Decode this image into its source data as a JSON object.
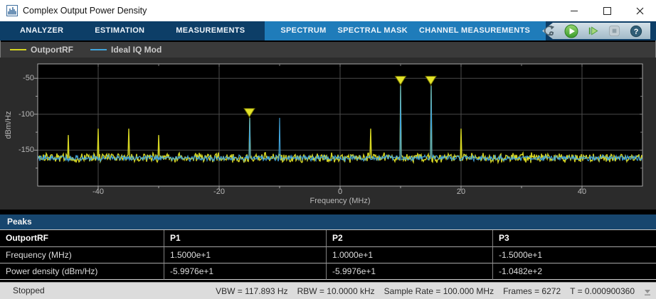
{
  "window": {
    "title": "Complex Output Power Density"
  },
  "ribbon": {
    "tabs": [
      "ANALYZER",
      "ESTIMATION",
      "MEASUREMENTS"
    ],
    "contextual_tabs": [
      "SPECTRUM",
      "SPECTRAL MASK",
      "CHANNEL MEASUREMENTS"
    ],
    "control_icons": [
      "run-with-settings-icon",
      "run-icon",
      "step-forward-icon",
      "stop-icon",
      "help-icon"
    ]
  },
  "legend": {
    "items": [
      {
        "label": "OutportRF",
        "color": "#d6d622"
      },
      {
        "label": "Ideal IQ Mod",
        "color": "#42a5dc"
      }
    ]
  },
  "chart_data": {
    "type": "line",
    "title": "Complex Output Power Density",
    "xlabel": "Frequency (MHz)",
    "ylabel": "dBm/Hz",
    "xlim": [
      -50,
      50
    ],
    "ylim": [
      -200,
      -30
    ],
    "xticks": [
      -40,
      -20,
      0,
      20,
      40
    ],
    "yticks": [
      -50,
      -100,
      -150
    ],
    "grid": true,
    "background": "#000000",
    "noise_floor_dBm_per_Hz": -160,
    "series": [
      {
        "name": "OutportRF",
        "color": "#d6d622",
        "noise_mean": -160.5,
        "noise_amp": 7.5,
        "spikes": [
          {
            "freq": -45,
            "power": -129
          },
          {
            "freq": -40,
            "power": -120
          },
          {
            "freq": -35,
            "power": -120
          },
          {
            "freq": -30,
            "power": -129
          },
          {
            "freq": -15,
            "power": -104.82
          },
          {
            "freq": 5,
            "power": -120
          },
          {
            "freq": 10,
            "power": -59.976
          },
          {
            "freq": 15,
            "power": -59.976
          },
          {
            "freq": 20,
            "power": -120
          }
        ]
      },
      {
        "name": "Ideal IQ Mod",
        "color": "#42a5dc",
        "noise_mean": -161,
        "noise_amp": 4.8,
        "spikes": [
          {
            "freq": -15,
            "power": -105.5
          },
          {
            "freq": -10,
            "power": -105
          },
          {
            "freq": 10,
            "power": -60.5
          },
          {
            "freq": 15,
            "power": -60.5
          }
        ]
      }
    ],
    "peak_markers": [
      {
        "freq": 15,
        "power": -59.976
      },
      {
        "freq": 10,
        "power": -59.976
      },
      {
        "freq": -15,
        "power": -104.82
      }
    ],
    "marker_color": "#e3e32a"
  },
  "peaks": {
    "title": "Peaks",
    "columns": [
      "OutportRF",
      "P1",
      "P2",
      "P3"
    ],
    "rows": [
      {
        "label": "Frequency (MHz)",
        "values": [
          "1.5000e+1",
          "1.0000e+1",
          "-1.5000e+1"
        ]
      },
      {
        "label": "Power density (dBm/Hz)",
        "values": [
          "-5.9976e+1",
          "-5.9976e+1",
          "-1.0482e+2"
        ]
      }
    ]
  },
  "status_bar": {
    "state": "Stopped",
    "metrics": [
      "VBW = 117.893 Hz",
      "RBW = 10.0000 kHz",
      "Sample Rate = 100.000 MHz",
      "Frames = 6272",
      "T = 0.000900360"
    ]
  }
}
